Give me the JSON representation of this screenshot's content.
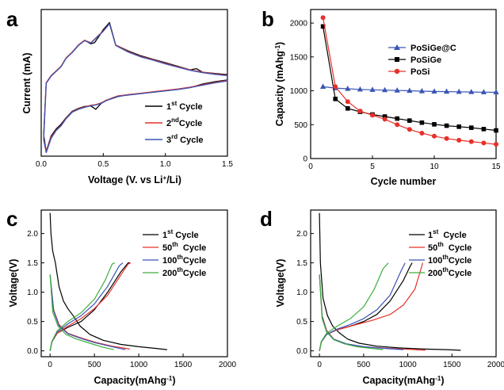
{
  "chart_data": [
    {
      "panel": "a",
      "type": "line",
      "xlabel_parts": [
        "Voltage (V. vs Li",
        "+",
        "/Li)"
      ],
      "ylabel": "Current (mA)",
      "xlim": [
        0,
        1.5
      ],
      "xticks": [
        "0.0",
        "0.5",
        "1.0",
        "1.5"
      ],
      "legend_position": "bottom-right",
      "series": [
        {
          "name_parts": [
            "1",
            "st",
            " Cycle"
          ],
          "color": "#000000",
          "x": [
            0.02,
            0.04,
            0.08,
            0.12,
            0.16,
            0.2,
            0.25,
            0.3,
            0.35,
            0.4,
            0.44,
            0.48,
            0.5,
            0.52,
            0.55,
            0.58,
            0.62,
            0.7,
            0.8,
            0.9,
            1.0,
            1.1,
            1.2,
            1.3,
            1.4,
            1.5,
            1.5,
            1.4,
            1.3,
            1.25,
            1.2,
            1.1,
            1.0,
            0.9,
            0.8,
            0.7,
            0.6,
            0.55,
            0.5,
            0.47,
            0.43,
            0.4,
            0.35,
            0.3,
            0.25,
            0.2,
            0.16,
            0.12,
            0.08,
            0.04,
            0.02
          ],
          "y": [
            -1.7,
            -2.4,
            -1.75,
            -1.45,
            -1.25,
            -0.98,
            -0.7,
            -0.58,
            -0.5,
            -0.48,
            -0.62,
            -0.38,
            -0.32,
            -0.26,
            -0.2,
            -0.15,
            -0.08,
            0.0,
            0.05,
            0.1,
            0.16,
            0.22,
            0.3,
            0.45,
            0.55,
            0.62,
            0.85,
            0.9,
            0.95,
            1.1,
            1.05,
            1.2,
            1.35,
            1.5,
            1.65,
            1.85,
            2.1,
            3.05,
            2.75,
            2.5,
            2.2,
            2.15,
            2.3,
            2.1,
            1.8,
            1.55,
            1.2,
            1.0,
            0.8,
            0.5,
            -1.7
          ]
        },
        {
          "name_parts": [
            "2",
            "nd",
            "Cycle"
          ],
          "color": "#e8302a",
          "x": [
            0.02,
            0.04,
            0.08,
            0.12,
            0.16,
            0.2,
            0.25,
            0.3,
            0.35,
            0.4,
            0.44,
            0.48,
            0.5,
            0.52,
            0.55,
            0.58,
            0.62,
            0.7,
            0.8,
            0.9,
            1.0,
            1.1,
            1.2,
            1.3,
            1.4,
            1.5,
            1.5,
            1.4,
            1.3,
            1.2,
            1.1,
            1.0,
            0.9,
            0.8,
            0.7,
            0.6,
            0.55,
            0.5,
            0.45,
            0.4,
            0.35,
            0.3,
            0.25,
            0.2,
            0.16,
            0.12,
            0.08,
            0.04,
            0.02
          ],
          "y": [
            -1.85,
            -2.4,
            -1.8,
            -1.5,
            -1.3,
            -1.0,
            -0.72,
            -0.6,
            -0.52,
            -0.45,
            -0.42,
            -0.35,
            -0.3,
            -0.24,
            -0.18,
            -0.12,
            -0.05,
            0.0,
            0.06,
            0.12,
            0.18,
            0.24,
            0.32,
            0.42,
            0.52,
            0.6,
            0.82,
            0.88,
            0.95,
            1.05,
            1.18,
            1.32,
            1.48,
            1.62,
            1.82,
            2.1,
            3.0,
            2.7,
            2.45,
            2.2,
            2.3,
            2.1,
            1.8,
            1.55,
            1.2,
            1.0,
            0.8,
            0.5,
            -1.85
          ]
        },
        {
          "name_parts": [
            "3",
            "rd",
            " Cycle"
          ],
          "color": "#3a55b5",
          "x": [
            0.02,
            0.04,
            0.08,
            0.12,
            0.16,
            0.2,
            0.25,
            0.3,
            0.35,
            0.4,
            0.44,
            0.48,
            0.5,
            0.52,
            0.55,
            0.58,
            0.62,
            0.7,
            0.8,
            0.9,
            1.0,
            1.1,
            1.2,
            1.3,
            1.4,
            1.5,
            1.5,
            1.4,
            1.3,
            1.2,
            1.1,
            1.0,
            0.9,
            0.8,
            0.7,
            0.6,
            0.55,
            0.5,
            0.45,
            0.4,
            0.35,
            0.3,
            0.25,
            0.2,
            0.16,
            0.12,
            0.08,
            0.04,
            0.02
          ],
          "y": [
            -1.9,
            -2.45,
            -1.85,
            -1.52,
            -1.32,
            -1.02,
            -0.74,
            -0.62,
            -0.54,
            -0.47,
            -0.44,
            -0.37,
            -0.32,
            -0.26,
            -0.2,
            -0.14,
            -0.07,
            -0.02,
            0.04,
            0.1,
            0.16,
            0.22,
            0.3,
            0.4,
            0.5,
            0.58,
            0.8,
            0.86,
            0.93,
            1.03,
            1.16,
            1.3,
            1.46,
            1.6,
            1.8,
            2.08,
            3.0,
            2.68,
            2.43,
            2.18,
            2.28,
            2.08,
            1.78,
            1.53,
            1.18,
            0.98,
            0.78,
            0.48,
            -1.9
          ]
        }
      ]
    },
    {
      "panel": "b",
      "type": "line",
      "xlabel": "Cycle number",
      "ylabel_parts": [
        "Capacity (mAhg",
        "-1",
        ")"
      ],
      "xlim": [
        0,
        15
      ],
      "ylim": [
        0,
        2200
      ],
      "xticks": [
        0,
        5,
        10,
        15
      ],
      "yticks": [
        0,
        500,
        1000,
        1500,
        2000
      ],
      "legend_position": "top-right",
      "series": [
        {
          "name": "PoSiGe@C",
          "color": "#3a55b5",
          "marker": "triangle",
          "x": [
            1,
            2,
            3,
            4,
            5,
            6,
            7,
            8,
            9,
            10,
            11,
            12,
            13,
            14,
            15
          ],
          "y": [
            1060,
            1040,
            1030,
            1020,
            1015,
            1010,
            1005,
            1000,
            995,
            990,
            988,
            985,
            982,
            980,
            978
          ]
        },
        {
          "name": "PoSiGe",
          "color": "#000000",
          "marker": "square",
          "x": [
            1,
            2,
            3,
            4,
            5,
            6,
            7,
            8,
            9,
            10,
            11,
            12,
            13,
            14,
            15
          ],
          "y": [
            1950,
            880,
            740,
            690,
            650,
            620,
            590,
            560,
            530,
            505,
            485,
            470,
            455,
            435,
            415
          ]
        },
        {
          "name": "PoSi",
          "color": "#e8302a",
          "marker": "circle",
          "x": [
            1,
            2,
            3,
            4,
            5,
            6,
            7,
            8,
            9,
            10,
            11,
            12,
            13,
            14,
            15
          ],
          "y": [
            2080,
            1060,
            840,
            700,
            640,
            580,
            500,
            430,
            375,
            330,
            295,
            270,
            250,
            230,
            210
          ]
        }
      ]
    },
    {
      "panel": "c",
      "type": "line",
      "xlabel_parts": [
        "Capacity(mAhg",
        "-1",
        ")"
      ],
      "ylabel": "Voltage(V)",
      "xlim": [
        -100,
        2000
      ],
      "ylim": [
        -0.1,
        2.4
      ],
      "xticks": [
        0,
        500,
        1000,
        1500,
        2000
      ],
      "yticks": [
        "0.0",
        "0.5",
        "1.0",
        "1.5",
        "2.0"
      ],
      "legend_position": "top-right",
      "series": [
        {
          "name_parts": [
            "1",
            "st",
            " Cycle"
          ],
          "color": "#000000",
          "discharge": {
            "x": [
              0,
              10,
              30,
              60,
              100,
              150,
              200,
              260,
              340,
              450,
              600,
              800,
              1000,
              1200,
              1320
            ],
            "y": [
              2.35,
              2.0,
              1.7,
              1.5,
              1.1,
              0.85,
              0.72,
              0.6,
              0.42,
              0.28,
              0.18,
              0.11,
              0.07,
              0.04,
              0.02
            ]
          },
          "charge": {
            "x": [
              0,
              20,
              80,
              200,
              350,
              500,
              650,
              800,
              880,
              900
            ],
            "y": [
              0.0,
              0.15,
              0.3,
              0.4,
              0.5,
              0.7,
              1.0,
              1.35,
              1.5,
              1.5
            ]
          }
        },
        {
          "name_parts": [
            "50",
            "th",
            "  Cycle"
          ],
          "color": "#e8302a",
          "discharge": {
            "x": [
              0,
              40,
              100,
              200,
              350,
              500,
              700,
              900
            ],
            "y": [
              1.3,
              0.7,
              0.45,
              0.3,
              0.22,
              0.15,
              0.08,
              0.03
            ]
          },
          "charge": {
            "x": [
              0,
              20,
              80,
              200,
              350,
              500,
              650,
              800,
              880,
              910
            ],
            "y": [
              0.0,
              0.15,
              0.3,
              0.42,
              0.55,
              0.72,
              0.95,
              1.3,
              1.48,
              1.5
            ]
          }
        },
        {
          "name_parts": [
            "100",
            "th",
            "Cycle"
          ],
          "color": "#3a55b5",
          "discharge": {
            "x": [
              0,
              40,
              100,
              200,
              350,
              500,
              700,
              850
            ],
            "y": [
              1.3,
              0.68,
              0.43,
              0.29,
              0.21,
              0.14,
              0.07,
              0.02
            ]
          },
          "charge": {
            "x": [
              0,
              20,
              80,
              200,
              350,
              500,
              650,
              780,
              820
            ],
            "y": [
              0.0,
              0.15,
              0.32,
              0.46,
              0.6,
              0.8,
              1.1,
              1.45,
              1.5
            ]
          }
        },
        {
          "name_parts": [
            "200",
            "th",
            "Cycle"
          ],
          "color": "#3dae3d",
          "discharge": {
            "x": [
              0,
              30,
              90,
              180,
              300,
              450,
              600,
              720
            ],
            "y": [
              1.3,
              0.66,
              0.42,
              0.28,
              0.2,
              0.13,
              0.06,
              0.02
            ]
          },
          "charge": {
            "x": [
              0,
              20,
              80,
              200,
              350,
              500,
              620,
              700,
              730
            ],
            "y": [
              0.0,
              0.16,
              0.34,
              0.5,
              0.65,
              0.88,
              1.2,
              1.48,
              1.5
            ]
          }
        }
      ]
    },
    {
      "panel": "d",
      "type": "line",
      "xlabel_parts": [
        "Capacity(mAhg",
        "-1",
        ")"
      ],
      "ylabel": "Voltage(V)",
      "xlim": [
        -100,
        2000
      ],
      "ylim": [
        -0.1,
        2.4
      ],
      "xticks": [
        0,
        500,
        1000,
        1500,
        2000
      ],
      "yticks": [
        "0.0",
        "0.5",
        "1.0",
        "1.5",
        "2.0"
      ],
      "legend_position": "top-right",
      "series": [
        {
          "name_parts": [
            "1",
            "st",
            "  Cycle"
          ],
          "color": "#000000",
          "discharge": {
            "x": [
              0,
              10,
              40,
              90,
              150,
              230,
              320,
              450,
              650,
              900,
              1200,
              1450,
              1600
            ],
            "y": [
              2.35,
              1.5,
              0.9,
              0.6,
              0.42,
              0.3,
              0.2,
              0.13,
              0.08,
              0.05,
              0.03,
              0.02,
              0.01
            ]
          },
          "charge": {
            "x": [
              0,
              20,
              80,
              200,
              350,
              500,
              650,
              800,
              950,
              1030,
              1050
            ],
            "y": [
              0.0,
              0.15,
              0.28,
              0.36,
              0.42,
              0.5,
              0.62,
              0.85,
              1.2,
              1.45,
              1.5
            ]
          }
        },
        {
          "name_parts": [
            "50",
            "th",
            "  Cycle"
          ],
          "color": "#e8302a",
          "discharge": {
            "x": [
              0,
              30,
              80,
              160,
              300,
              500,
              800,
              1100,
              1200
            ],
            "y": [
              1.3,
              0.6,
              0.35,
              0.2,
              0.12,
              0.07,
              0.04,
              0.02,
              0.01
            ]
          },
          "charge": {
            "x": [
              0,
              20,
              80,
              200,
              400,
              600,
              800,
              950,
              1080,
              1150,
              1170
            ],
            "y": [
              0.0,
              0.15,
              0.28,
              0.36,
              0.44,
              0.52,
              0.62,
              0.78,
              1.05,
              1.4,
              1.5
            ]
          }
        },
        {
          "name_parts": [
            "100",
            "th",
            "Cycle"
          ],
          "color": "#3a55b5",
          "discharge": {
            "x": [
              0,
              30,
              80,
              160,
              300,
              500,
              750,
              950
            ],
            "y": [
              1.3,
              0.58,
              0.33,
              0.2,
              0.12,
              0.07,
              0.04,
              0.02
            ]
          },
          "charge": {
            "x": [
              0,
              20,
              80,
              200,
              350,
              500,
              650,
              800,
              920,
              970
            ],
            "y": [
              0.0,
              0.15,
              0.28,
              0.37,
              0.45,
              0.55,
              0.7,
              0.95,
              1.35,
              1.5
            ]
          }
        },
        {
          "name_parts": [
            "200",
            "th",
            "Cycle"
          ],
          "color": "#3dae3d",
          "discharge": {
            "x": [
              0,
              30,
              80,
              160,
              280,
              420,
              600,
              720
            ],
            "y": [
              1.3,
              0.55,
              0.32,
              0.19,
              0.12,
              0.07,
              0.04,
              0.02
            ]
          },
          "charge": {
            "x": [
              0,
              20,
              80,
              200,
              350,
              500,
              620,
              720,
              780
            ],
            "y": [
              0.0,
              0.16,
              0.3,
              0.42,
              0.55,
              0.75,
              1.05,
              1.4,
              1.5
            ]
          }
        }
      ]
    }
  ]
}
